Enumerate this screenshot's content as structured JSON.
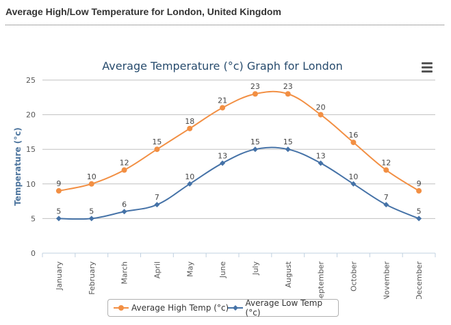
{
  "page": {
    "heading": "Average High/Low Temperature for London, United Kingdom"
  },
  "chart_data": {
    "type": "line",
    "title": "Average Temperature (°c) Graph for London",
    "xlabel": "",
    "ylabel": "Temperature (°c)",
    "categories": [
      "January",
      "February",
      "March",
      "April",
      "May",
      "June",
      "July",
      "August",
      "September",
      "October",
      "November",
      "December"
    ],
    "ylim": [
      0,
      25
    ],
    "yticks": [
      0,
      5,
      10,
      15,
      20,
      25
    ],
    "grid": true,
    "legend_position": "bottom",
    "series": [
      {
        "name": "Average High Temp (°c)",
        "values": [
          9,
          10,
          12,
          15,
          18,
          21,
          23,
          23,
          20,
          16,
          12,
          9
        ],
        "color": "#f28f43",
        "marker": "circle"
      },
      {
        "name": "Average Low Temp (°c)",
        "values": [
          5,
          5,
          6,
          7,
          10,
          13,
          15,
          15,
          13,
          10,
          7,
          5
        ],
        "color": "#4572a7",
        "marker": "diamond"
      }
    ]
  },
  "icons": {
    "menu": "menu-icon"
  }
}
